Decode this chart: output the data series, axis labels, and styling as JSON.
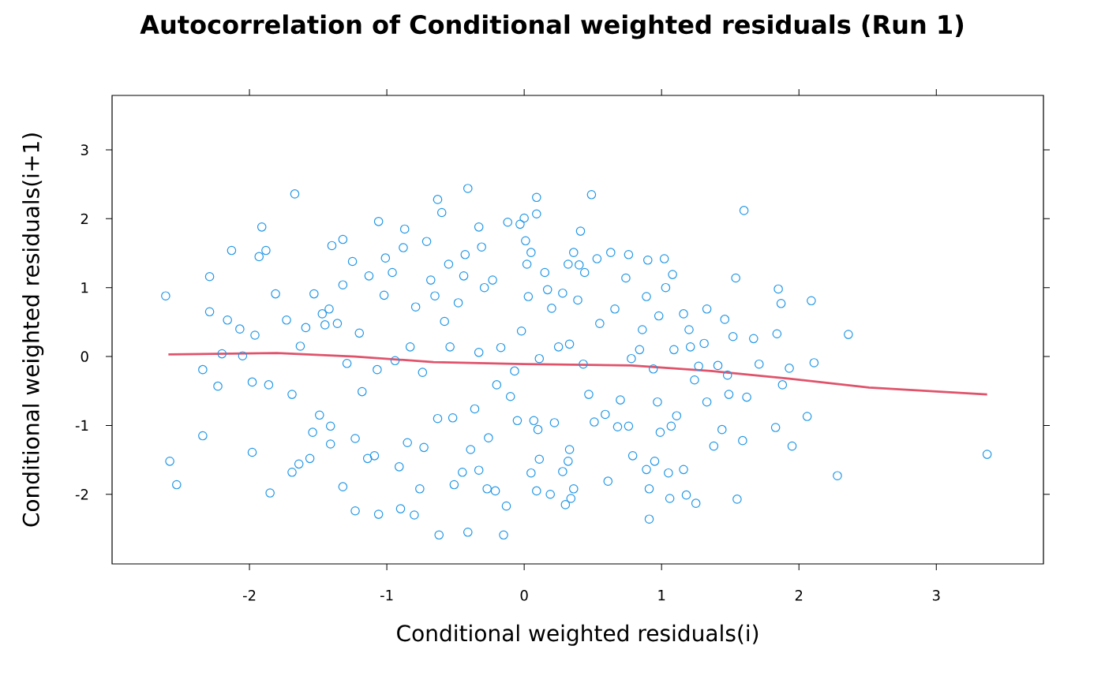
{
  "chart_data": {
    "type": "scatter",
    "title": "Autocorrelation of Conditional weighted residuals (Run 1)",
    "xlabel": "Conditional weighted residuals(i)",
    "ylabel": "Conditional weighted residuals(i+1)",
    "xlim": [
      -3.0,
      3.78
    ],
    "ylim": [
      -3.01,
      3.79
    ],
    "xticks": [
      -2,
      -1,
      0,
      1,
      2,
      3
    ],
    "yticks": [
      -2,
      -1,
      0,
      1,
      2,
      3
    ],
    "grid": false,
    "series": [
      {
        "marker": "circle",
        "color": "#2297e6",
        "x": [
          -2.61,
          -2.58,
          -2.53,
          -2.34,
          -2.34,
          -2.29,
          -2.29,
          -2.23,
          -2.13,
          -2.16,
          -2.2,
          -2.07,
          -2.05,
          -1.98,
          -1.98,
          -1.96,
          -1.91,
          -1.93,
          -1.88,
          -1.86,
          -1.85,
          -1.81,
          -1.73,
          -1.67,
          -1.69,
          -1.69,
          -1.64,
          -1.63,
          -1.59,
          -1.56,
          -1.54,
          -1.53,
          -1.49,
          -1.47,
          -1.45,
          -1.42,
          -1.41,
          -1.4,
          -1.41,
          -1.36,
          -1.32,
          -1.32,
          -1.32,
          -1.25,
          -1.29,
          -1.23,
          -1.23,
          -1.2,
          -1.18,
          -1.14,
          -1.13,
          -1.09,
          -1.07,
          -1.06,
          -1.06,
          -1.02,
          -1.01,
          -0.96,
          -0.94,
          -0.91,
          -0.9,
          -0.88,
          -0.87,
          -0.85,
          -0.83,
          -0.8,
          -0.79,
          -0.76,
          -0.73,
          -0.74,
          -0.71,
          -0.68,
          -0.65,
          -0.63,
          -0.62,
          -0.63,
          -0.6,
          -0.58,
          -0.55,
          -0.54,
          -0.52,
          -0.51,
          -0.48,
          -0.45,
          -0.44,
          -0.43,
          -0.41,
          -0.41,
          -0.39,
          -0.36,
          -0.33,
          -0.33,
          -0.33,
          -0.31,
          -0.29,
          -0.27,
          -0.26,
          -0.23,
          -0.21,
          -0.2,
          -0.17,
          -0.15,
          -0.13,
          -0.12,
          -0.1,
          -0.07,
          -0.05,
          -0.03,
          -0.02,
          0.0,
          0.01,
          0.02,
          0.03,
          0.05,
          0.05,
          0.07,
          0.09,
          0.09,
          0.11,
          0.1,
          0.09,
          0.11,
          0.15,
          0.17,
          0.19,
          0.2,
          0.22,
          0.25,
          0.28,
          0.28,
          0.3,
          0.32,
          0.33,
          0.32,
          0.33,
          0.34,
          0.36,
          0.36,
          0.39,
          0.41,
          0.4,
          0.43,
          0.44,
          0.47,
          0.49,
          0.51,
          0.53,
          0.55,
          0.59,
          0.61,
          0.63,
          0.66,
          0.68,
          0.7,
          0.74,
          0.76,
          0.76,
          0.78,
          0.79,
          0.84,
          0.86,
          0.89,
          0.9,
          0.89,
          0.91,
          0.91,
          0.94,
          0.95,
          0.97,
          0.98,
          0.99,
          1.02,
          1.03,
          1.06,
          1.05,
          1.08,
          1.09,
          1.07,
          1.11,
          1.16,
          1.16,
          1.18,
          1.2,
          1.21,
          1.24,
          1.25,
          1.27,
          1.31,
          1.33,
          1.33,
          1.38,
          1.41,
          1.44,
          1.46,
          1.48,
          1.49,
          1.52,
          1.54,
          1.55,
          1.59,
          1.6,
          1.62,
          1.67,
          1.71,
          1.83,
          1.84,
          1.85,
          1.87,
          1.88,
          1.95,
          1.93,
          2.06,
          2.09,
          2.11,
          2.28,
          2.36,
          3.37
        ],
        "values": [
          0.88,
          -1.52,
          -1.86,
          -0.19,
          -1.15,
          1.16,
          0.65,
          -0.43,
          1.54,
          0.53,
          0.04,
          0.4,
          0.01,
          -1.39,
          -0.37,
          0.31,
          1.88,
          1.45,
          1.54,
          -0.41,
          -1.98,
          0.91,
          0.53,
          2.36,
          -0.55,
          -1.68,
          -1.56,
          0.15,
          0.42,
          -1.48,
          -1.1,
          0.91,
          -0.85,
          0.62,
          0.46,
          0.69,
          -1.27,
          1.61,
          -1.01,
          0.48,
          1.7,
          -1.89,
          1.04,
          1.38,
          -0.1,
          -2.24,
          -1.19,
          0.34,
          -0.51,
          -1.48,
          1.17,
          -1.44,
          -0.19,
          1.96,
          -2.29,
          0.89,
          1.43,
          1.22,
          -0.06,
          -1.6,
          -2.21,
          1.58,
          1.85,
          -1.25,
          0.14,
          -2.3,
          0.72,
          -1.92,
          -1.32,
          -0.23,
          1.67,
          1.11,
          0.88,
          -0.9,
          -2.59,
          2.28,
          2.09,
          0.51,
          1.34,
          0.14,
          -0.89,
          -1.86,
          0.78,
          -1.68,
          1.17,
          1.48,
          2.44,
          -2.55,
          -1.35,
          -0.76,
          0.06,
          1.88,
          -1.65,
          1.59,
          1.0,
          -1.92,
          -1.18,
          1.11,
          -1.95,
          -0.41,
          0.13,
          -2.59,
          -2.17,
          1.95,
          -0.58,
          -0.21,
          -0.93,
          1.92,
          0.37,
          2.01,
          1.68,
          1.34,
          0.87,
          1.51,
          -1.69,
          -0.93,
          2.31,
          2.07,
          -0.03,
          -1.06,
          -1.95,
          -1.49,
          1.22,
          0.97,
          -2.0,
          0.7,
          -0.96,
          0.14,
          0.92,
          -1.67,
          -2.15,
          -1.52,
          -1.35,
          1.34,
          0.18,
          -2.06,
          -1.92,
          1.51,
          0.82,
          1.82,
          1.33,
          -0.11,
          1.22,
          -0.55,
          2.35,
          -0.95,
          1.42,
          0.48,
          -0.84,
          -1.81,
          1.51,
          0.69,
          -1.02,
          -0.63,
          1.14,
          1.48,
          -1.01,
          -0.03,
          -1.44,
          0.1,
          0.39,
          0.87,
          1.4,
          -1.64,
          -2.36,
          -1.92,
          -0.18,
          -1.52,
          -0.66,
          0.59,
          -1.1,
          1.42,
          1.0,
          -2.06,
          -1.69,
          1.19,
          0.1,
          -1.01,
          -0.86,
          0.62,
          -1.64,
          -2.01,
          0.39,
          0.14,
          -0.34,
          -2.13,
          -0.14,
          0.19,
          -0.66,
          0.69,
          -1.3,
          -0.13,
          -1.06,
          0.54,
          -0.27,
          -0.55,
          0.29,
          1.14,
          -2.07,
          -1.22,
          2.12,
          -0.59,
          0.26,
          -0.11,
          -1.03,
          0.33,
          0.98,
          0.77,
          -0.41,
          -1.3,
          -0.17,
          -0.87,
          0.81,
          -0.09,
          -1.73,
          0.32,
          -1.42
        ]
      },
      {
        "type": "line",
        "color": "#df536b",
        "x": [
          -2.59,
          -1.8,
          -1.23,
          -0.66,
          0.0,
          0.78,
          1.36,
          1.93,
          2.51,
          3.37
        ],
        "values": [
          0.03,
          0.05,
          0.0,
          -0.08,
          -0.11,
          -0.13,
          -0.21,
          -0.32,
          -0.45,
          -0.55
        ]
      }
    ]
  }
}
